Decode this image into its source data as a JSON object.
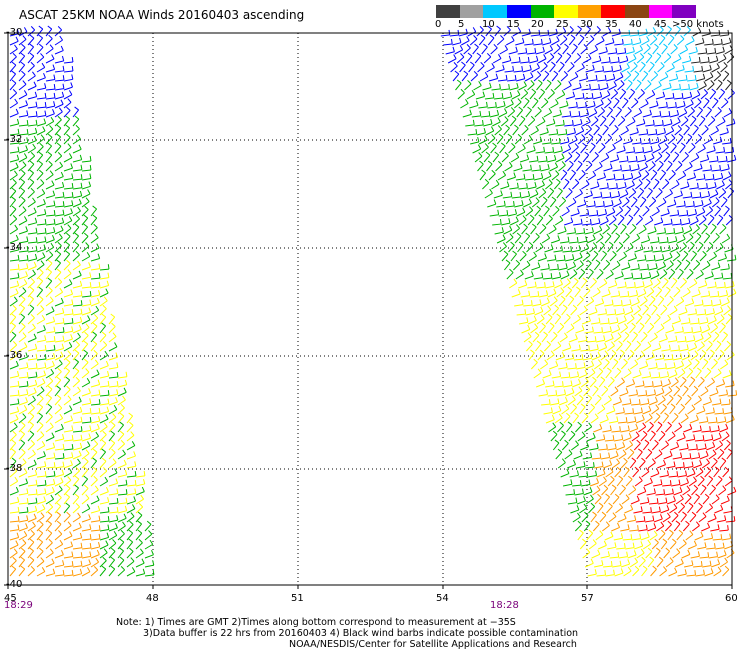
{
  "title": "ASCAT 25KM NOAA Winds 20160403 ascending",
  "legend": {
    "labels": [
      "0",
      "5",
      "10",
      "15",
      "20",
      "25",
      "30",
      "35",
      "40",
      "45",
      ">50 knots"
    ],
    "colors": [
      "#404040",
      "#a0a0a0",
      "#00c8ff",
      "#0000ff",
      "#00b400",
      "#ffff00",
      "#ffa000",
      "#ff0000",
      "#8b4513",
      "#ff00ff",
      "#8000c0"
    ]
  },
  "axes": {
    "lat_labels": [
      "-30",
      "-32",
      "-34",
      "-36",
      "-38",
      "-40"
    ],
    "lon_labels": [
      "45",
      "48",
      "51",
      "54",
      "57",
      "60"
    ]
  },
  "pass_times": [
    "18:29",
    "18:28"
  ],
  "notes": {
    "line1": "Note: 1) Times are GMT 2)Times along bottom correspond to measurement at −35S",
    "line2": "3)Data buffer is 22 hrs from 20160403 4) Black wind barbs indicate possible contamination",
    "line3": "NOAA/NESDIS/Center for Satellite Applications and Research"
  }
}
